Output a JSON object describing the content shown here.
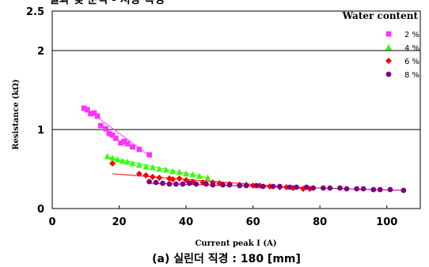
{
  "header_fragment": "결과 및 분석 - 저항 특성",
  "caption": "(a) 실린더 직경 : 180 [mm]",
  "chart_data": {
    "type": "scatter",
    "title": "",
    "xlabel": "Current peak I (A)",
    "ylabel": "Resistance (kΩ)",
    "xlim": [
      0,
      110
    ],
    "ylim": [
      0,
      2.5
    ],
    "x_ticks": [
      0,
      20,
      40,
      60,
      80,
      100
    ],
    "x_tick_labels": [
      "0",
      "20",
      "40",
      "60",
      "80",
      "100"
    ],
    "y_ticks": [
      0,
      1,
      2,
      2.5
    ],
    "y_tick_labels": [
      "0",
      "1",
      "2",
      "2.5"
    ],
    "gridlines_y": [
      1,
      2
    ],
    "legend": {
      "title": "Water content",
      "placement": "top-right"
    },
    "series": [
      {
        "name": "2 %",
        "color": "#ff33ff",
        "marker": "square",
        "x": [
          9.5,
          10.5,
          11.5,
          12.5,
          13.5,
          14.5,
          16,
          17,
          18,
          19,
          20.5,
          21.5,
          22.5,
          24,
          26,
          29
        ],
        "y": [
          1.27,
          1.25,
          1.2,
          1.21,
          1.17,
          1.05,
          1.01,
          0.95,
          0.93,
          0.89,
          0.83,
          0.85,
          0.82,
          0.78,
          0.75,
          0.68
        ],
        "fit": [
          [
            9.5,
            1.28
          ],
          [
            29,
            0.67
          ]
        ]
      },
      {
        "name": "4 %",
        "color": "#33ff00",
        "marker": "triangle",
        "x": [
          16.5,
          18,
          19.5,
          21,
          22.5,
          24,
          26,
          28,
          30,
          32,
          34,
          36,
          38,
          40,
          42,
          44,
          46.5
        ],
        "y": [
          0.66,
          0.64,
          0.62,
          0.6,
          0.59,
          0.57,
          0.55,
          0.53,
          0.52,
          0.5,
          0.49,
          0.47,
          0.46,
          0.44,
          0.43,
          0.41,
          0.39
        ],
        "fit": [
          [
            16.5,
            0.65
          ],
          [
            46.5,
            0.39
          ]
        ]
      },
      {
        "name": "6 %",
        "color": "#ff0000",
        "marker": "diamond",
        "x": [
          18,
          26,
          28,
          30,
          32,
          35,
          36,
          38,
          40,
          42,
          45,
          48,
          50,
          53,
          56,
          58,
          60,
          62,
          65,
          68,
          70,
          72,
          75,
          77
        ],
        "y": [
          0.57,
          0.44,
          0.42,
          0.4,
          0.39,
          0.38,
          0.37,
          0.38,
          0.36,
          0.34,
          0.33,
          0.33,
          0.32,
          0.31,
          0.3,
          0.3,
          0.29,
          0.29,
          0.28,
          0.27,
          0.27,
          0.26,
          0.25,
          0.25
        ],
        "fit": [
          [
            18,
            0.44
          ],
          [
            77,
            0.25
          ]
        ]
      },
      {
        "name": "8 %",
        "color": "#800080",
        "marker": "circle",
        "x": [
          29,
          31,
          33,
          35,
          37,
          39,
          41,
          43,
          46,
          48,
          51,
          53,
          56,
          58,
          61,
          63,
          66,
          68,
          71,
          73,
          76,
          78,
          81,
          83,
          86,
          88,
          91,
          93,
          96,
          98,
          101,
          105
        ],
        "y": [
          0.34,
          0.33,
          0.32,
          0.31,
          0.31,
          0.31,
          0.32,
          0.31,
          0.31,
          0.3,
          0.3,
          0.3,
          0.29,
          0.29,
          0.29,
          0.28,
          0.28,
          0.28,
          0.27,
          0.27,
          0.27,
          0.26,
          0.26,
          0.26,
          0.26,
          0.25,
          0.25,
          0.25,
          0.24,
          0.24,
          0.24,
          0.23
        ],
        "fit": [
          [
            29,
            0.32
          ],
          [
            105,
            0.23
          ]
        ]
      }
    ]
  }
}
